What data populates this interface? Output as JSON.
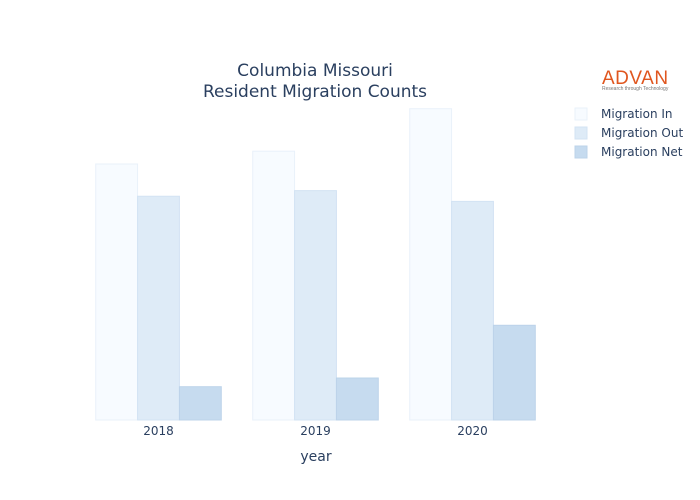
{
  "logo": {
    "name": "ADVAN",
    "tagline": "Research through Technology",
    "color": "#e0561f"
  },
  "chart_data": {
    "type": "bar",
    "title": [
      "Columbia Missouri",
      "Resident Migration Counts"
    ],
    "xlabel": "year",
    "ylabel": "",
    "categories": [
      "2018",
      "2019",
      "2020"
    ],
    "ylim": [
      0,
      6250
    ],
    "grid": false,
    "legend_position": "top-right",
    "series": [
      {
        "name": "Migration In",
        "values": [
          5000,
          5250,
          6080
        ],
        "color": "#f7fbff",
        "stroke": "#e9f1fa"
      },
      {
        "name": "Migration Out",
        "values": [
          4370,
          4480,
          4270
        ],
        "color": "#deebf7",
        "stroke": "#d3e3f3"
      },
      {
        "name": "Migration Net",
        "values": [
          650,
          820,
          1850
        ],
        "color": "#c6dbef",
        "stroke": "#bcd3ea"
      }
    ]
  }
}
